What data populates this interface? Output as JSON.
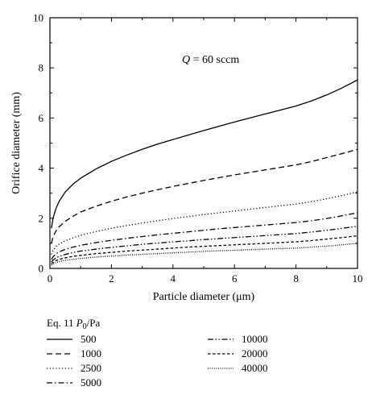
{
  "chart_data": {
    "type": "line",
    "xlabel": "Particle diameter (μm)",
    "ylabel": "Orifice diameter (mm)",
    "xlim": [
      0,
      10
    ],
    "ylim": [
      0,
      10
    ],
    "xticks": [
      "0",
      "2",
      "4",
      "6",
      "8",
      "10"
    ],
    "yticks": [
      "0",
      "2",
      "4",
      "6",
      "8",
      "10"
    ],
    "grid": false,
    "annotation": "Q = 60 sccm",
    "legend_title": "Eq. 11 P0/Pa",
    "legend_placement": "below",
    "series": [
      {
        "name": "500",
        "dash": "solid",
        "x": [
          0.05,
          0.1,
          0.2,
          0.3,
          0.5,
          0.75,
          1,
          1.5,
          2,
          2.5,
          3,
          3.5,
          4,
          4.5,
          5,
          5.5,
          6,
          6.5,
          7,
          7.5,
          8,
          8.5,
          9,
          9.5,
          10
        ],
        "y": [
          1.6,
          2.0,
          2.4,
          2.68,
          3.05,
          3.36,
          3.6,
          3.97,
          4.27,
          4.52,
          4.75,
          4.96,
          5.14,
          5.32,
          5.5,
          5.67,
          5.84,
          6.0,
          6.16,
          6.32,
          6.48,
          6.68,
          6.92,
          7.2,
          7.52
        ]
      },
      {
        "name": "1000",
        "dash": "dashed",
        "x": [
          0.05,
          0.1,
          0.2,
          0.3,
          0.5,
          0.75,
          1,
          1.5,
          2,
          2.5,
          3,
          3.5,
          4,
          4.5,
          5,
          5.5,
          6,
          6.5,
          7,
          7.5,
          8,
          8.5,
          9,
          9.5,
          10
        ],
        "y": [
          1.0,
          1.26,
          1.5,
          1.66,
          1.88,
          2.08,
          2.25,
          2.48,
          2.68,
          2.85,
          3.0,
          3.14,
          3.27,
          3.39,
          3.51,
          3.62,
          3.73,
          3.83,
          3.93,
          4.03,
          4.13,
          4.26,
          4.42,
          4.58,
          4.75
        ]
      },
      {
        "name": "2500",
        "dash": "dotted",
        "x": [
          0.05,
          0.1,
          0.2,
          0.3,
          0.5,
          0.75,
          1,
          1.5,
          2,
          2.5,
          3,
          3.5,
          4,
          4.5,
          5,
          5.5,
          6,
          6.5,
          7,
          7.5,
          8,
          8.5,
          9,
          9.5,
          10
        ],
        "y": [
          0.56,
          0.72,
          0.87,
          0.97,
          1.1,
          1.22,
          1.32,
          1.47,
          1.6,
          1.71,
          1.81,
          1.9,
          1.99,
          2.07,
          2.15,
          2.22,
          2.29,
          2.36,
          2.43,
          2.5,
          2.57,
          2.66,
          2.78,
          2.91,
          3.05
        ]
      },
      {
        "name": "5000",
        "dash": "dashdot",
        "x": [
          0.05,
          0.1,
          0.2,
          0.3,
          0.5,
          0.75,
          1,
          1.5,
          2,
          2.5,
          3,
          3.5,
          4,
          4.5,
          5,
          5.5,
          6,
          6.5,
          7,
          7.5,
          8,
          8.5,
          9,
          9.5,
          10
        ],
        "y": [
          0.36,
          0.46,
          0.58,
          0.66,
          0.76,
          0.85,
          0.92,
          1.03,
          1.12,
          1.2,
          1.27,
          1.34,
          1.4,
          1.46,
          1.52,
          1.58,
          1.63,
          1.68,
          1.73,
          1.78,
          1.83,
          1.9,
          1.99,
          2.1,
          2.22
        ]
      },
      {
        "name": "10000",
        "dash": "dashdotdot",
        "x": [
          0.05,
          0.1,
          0.2,
          0.3,
          0.5,
          0.75,
          1,
          1.5,
          2,
          2.5,
          3,
          3.5,
          4,
          4.5,
          5,
          5.5,
          6,
          6.5,
          7,
          7.5,
          8,
          8.5,
          9,
          9.5,
          10
        ],
        "y": [
          0.26,
          0.33,
          0.42,
          0.48,
          0.56,
          0.63,
          0.69,
          0.77,
          0.84,
          0.9,
          0.96,
          1.01,
          1.06,
          1.1,
          1.15,
          1.19,
          1.23,
          1.27,
          1.31,
          1.35,
          1.39,
          1.45,
          1.52,
          1.6,
          1.68
        ]
      },
      {
        "name": "20000",
        "dash": "shortdash",
        "x": [
          0.05,
          0.1,
          0.2,
          0.3,
          0.5,
          0.75,
          1,
          1.5,
          2,
          2.5,
          3,
          3.5,
          4,
          4.5,
          5,
          5.5,
          6,
          6.5,
          7,
          7.5,
          8,
          8.5,
          9,
          9.5,
          10
        ],
        "y": [
          0.19,
          0.24,
          0.31,
          0.36,
          0.42,
          0.48,
          0.52,
          0.59,
          0.64,
          0.69,
          0.73,
          0.77,
          0.81,
          0.85,
          0.88,
          0.91,
          0.94,
          0.97,
          1.0,
          1.03,
          1.06,
          1.11,
          1.17,
          1.23,
          1.3
        ]
      },
      {
        "name": "40000",
        "dash": "densedotted",
        "x": [
          0.05,
          0.1,
          0.2,
          0.3,
          0.5,
          0.75,
          1,
          1.5,
          2,
          2.5,
          3,
          3.5,
          4,
          4.5,
          5,
          5.5,
          6,
          6.5,
          7,
          7.5,
          8,
          8.5,
          9,
          9.5,
          10
        ],
        "y": [
          0.14,
          0.18,
          0.23,
          0.27,
          0.32,
          0.36,
          0.4,
          0.45,
          0.49,
          0.53,
          0.56,
          0.59,
          0.62,
          0.65,
          0.68,
          0.7,
          0.72,
          0.75,
          0.77,
          0.79,
          0.81,
          0.85,
          0.89,
          0.94,
          1.0
        ]
      }
    ]
  }
}
